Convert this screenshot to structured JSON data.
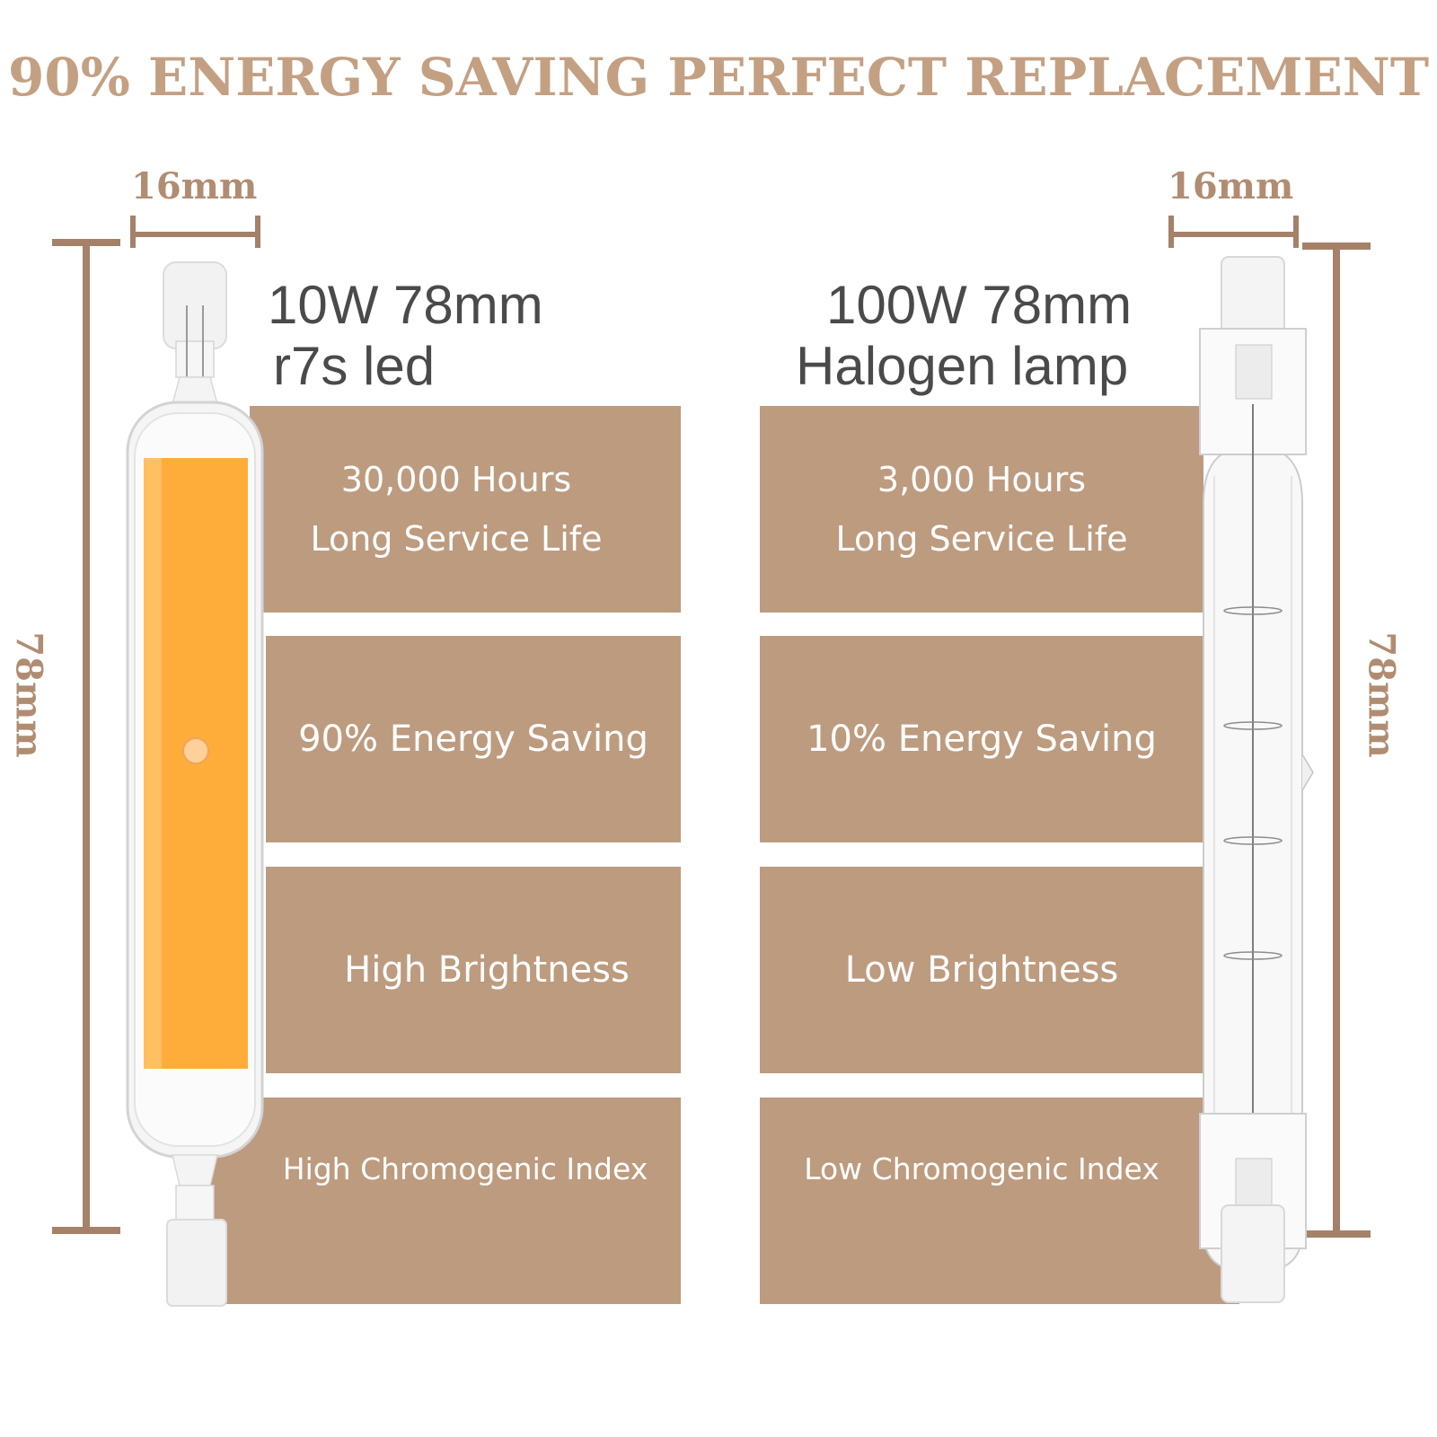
{
  "headline": "90% ENERGY SAVING PERFECT REPLACEMENT",
  "led": {
    "width_label": "16mm",
    "height_label": "78mm",
    "title_line1": "10W 78mm",
    "title_line2": "r7s led",
    "features": [
      {
        "line1": "30,000 Hours",
        "line2": "Long Service Life"
      },
      {
        "text": "90% Energy Saving"
      },
      {
        "text": "High Brightness"
      },
      {
        "text": "High Chromogenic Index"
      }
    ]
  },
  "halogen": {
    "width_label": "16mm",
    "height_label": "78mm",
    "title_line1": "100W 78mm",
    "title_line2": "Halogen lamp",
    "features": [
      {
        "line1": "3,000 Hours",
        "line2": "Long Service Life"
      },
      {
        "text": "10% Energy Saving"
      },
      {
        "text": "Low Brightness"
      },
      {
        "text": "Low Chromogenic Index"
      }
    ]
  },
  "colors": {
    "accent": "#bd9b7f",
    "headline": "#c4a083",
    "dimension": "#a48168",
    "led_glow": "#ffad3a"
  }
}
